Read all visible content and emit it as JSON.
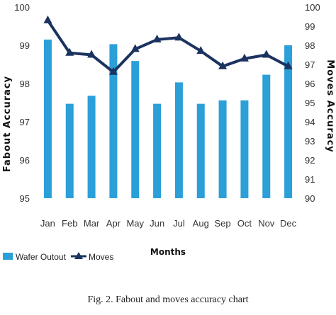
{
  "chart_data": {
    "type": "bar",
    "categories": [
      "Jan",
      "Feb",
      "Mar",
      "Apr",
      "May",
      "Jun",
      "Jul",
      "Aug",
      "Sep",
      "Oct",
      "Nov",
      "Dec"
    ],
    "series": [
      {
        "name": "Wafer Outout",
        "type": "bar",
        "axis": "left",
        "color": "#2b9fd8",
        "values": [
          99.15,
          97.47,
          97.68,
          99.03,
          98.59,
          97.47,
          98.03,
          97.47,
          97.56,
          97.56,
          98.23,
          99.0
        ]
      },
      {
        "name": "Moves",
        "type": "line",
        "axis": "right",
        "color": "#1c3360",
        "values": [
          99.3,
          97.6,
          97.5,
          96.6,
          97.8,
          98.3,
          98.4,
          97.7,
          96.9,
          97.3,
          97.5,
          96.9
        ]
      }
    ],
    "xlabel": "Months",
    "ylabel_left": "Fabout Accuracy",
    "ylabel_right": "Moves Accuracy",
    "ylim_left": [
      95,
      100
    ],
    "ylim_right": [
      90,
      100
    ],
    "yticks_left": [
      "95",
      "96",
      "97",
      "98",
      "99",
      "100"
    ],
    "yticks_right": [
      "90",
      "91",
      "92",
      "93",
      "94",
      "95",
      "96",
      "97",
      "98",
      "99",
      "100"
    ],
    "legend_position": "bottom-left",
    "grid": false
  },
  "caption": "Fig. 2. Fabout and moves accuracy chart"
}
